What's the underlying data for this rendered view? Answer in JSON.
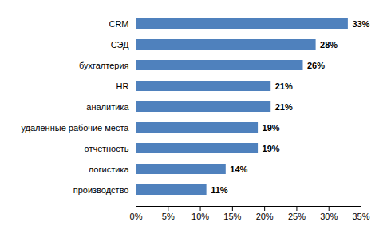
{
  "chart_data": {
    "type": "bar",
    "orientation": "horizontal",
    "categories": [
      "CRM",
      "СЭД",
      "бухгалтерия",
      "HR",
      "аналитика",
      "удаленные рабочие места",
      "отчетность",
      "логистика",
      "производство"
    ],
    "values": [
      33,
      28,
      26,
      21,
      21,
      19,
      19,
      14,
      11
    ],
    "value_labels": [
      "33%",
      "28%",
      "26%",
      "21%",
      "21%",
      "19%",
      "19%",
      "14%",
      "11%"
    ],
    "color": "#4f81bd",
    "xlim": [
      0,
      35
    ],
    "xticks": [
      {
        "value": 0,
        "label": "0%"
      },
      {
        "value": 5,
        "label": "5%"
      },
      {
        "value": 10,
        "label": "10%"
      },
      {
        "value": 15,
        "label": "15%"
      },
      {
        "value": 20,
        "label": "20%"
      },
      {
        "value": 25,
        "label": "25%"
      },
      {
        "value": 30,
        "label": "30%"
      },
      {
        "value": 35,
        "label": "35%"
      }
    ],
    "grid": false,
    "data_labels": true
  }
}
